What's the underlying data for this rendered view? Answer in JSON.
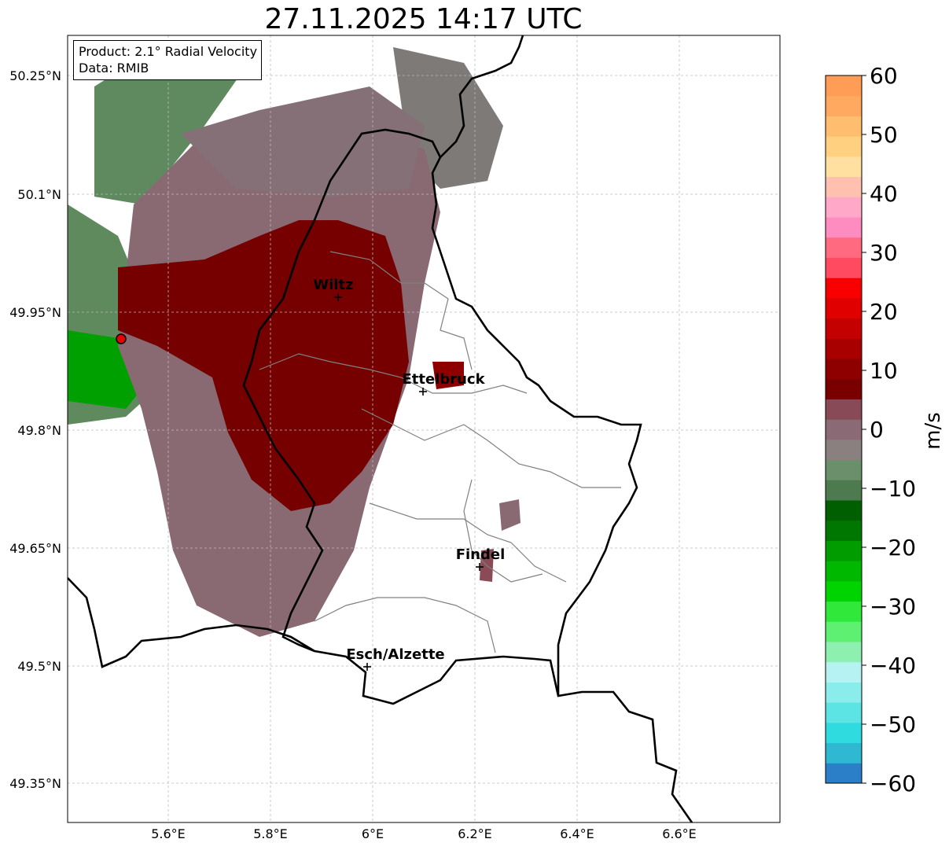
{
  "title": "27.11.2025 14:17 UTC",
  "info": {
    "product": "Product: 2.1° Radial Velocity",
    "source": "Data: RMIB"
  },
  "axes": {
    "lat_ticks": [
      "50.25°N",
      "50.1°N",
      "49.95°N",
      "49.8°N",
      "49.65°N",
      "49.5°N",
      "49.35°N"
    ],
    "lon_ticks": [
      "5.6°E",
      "5.8°E",
      "6°E",
      "6.2°E",
      "6.4°E",
      "6.6°E"
    ]
  },
  "cities": [
    {
      "name": "Wiltz"
    },
    {
      "name": "Ettelbruck"
    },
    {
      "name": "Findel"
    },
    {
      "name": "Esch/Alzette"
    }
  ],
  "colorbar": {
    "unit": "m/s",
    "ticks": [
      "60",
      "50",
      "40",
      "30",
      "20",
      "10",
      "0",
      "−10",
      "−20",
      "−30",
      "−40",
      "−50",
      "−60"
    ],
    "colors": [
      "#2b7fc8",
      "#2fb8d2",
      "#30dbe0",
      "#5be4e3",
      "#8aeceb",
      "#b6f2f2",
      "#8ef0b0",
      "#5ef070",
      "#2fe83a",
      "#00d400",
      "#00b800",
      "#009c00",
      "#007800",
      "#005f00",
      "#4e7a50",
      "#6a8f6a",
      "#8a8080",
      "#8a6a74",
      "#874a56",
      "#7a0000",
      "#8e0000",
      "#a80000",
      "#c40000",
      "#e00000",
      "#f80000",
      "#ff4a60",
      "#ff6a80",
      "#ff8cc0",
      "#ffa8c8",
      "#ffc0b0",
      "#ffe0a0",
      "#ffd080",
      "#ffbd70",
      "#ffa860",
      "#ff9c55"
    ],
    "range": [
      -60,
      60
    ]
  },
  "radar_site_color": "#e60000"
}
